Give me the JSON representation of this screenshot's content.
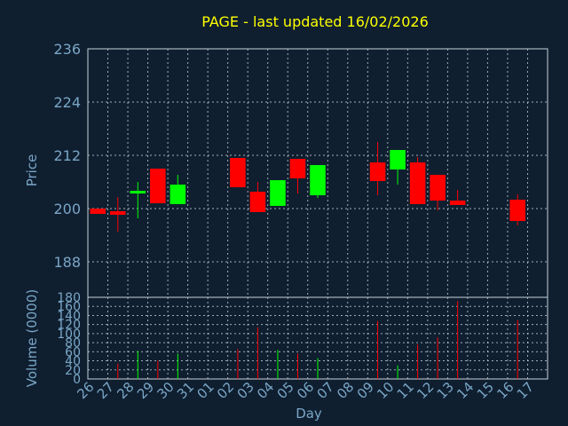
{
  "chart_data": [
    {
      "type": "candlestick",
      "title": "PAGE - last updated 16/02/2026",
      "xlabel": "Day",
      "ylabel": "Price",
      "ylim": [
        180,
        236
      ],
      "yticks": [
        188,
        200,
        212,
        224,
        236
      ],
      "grid": true,
      "categories": [
        "26",
        "27",
        "28",
        "29",
        "30",
        "31",
        "01",
        "02",
        "03",
        "04",
        "05",
        "06",
        "07",
        "08",
        "09",
        "10",
        "11",
        "12",
        "13",
        "14",
        "15",
        "16",
        "17"
      ],
      "candles": [
        {
          "day": "26",
          "open": 200.0,
          "close": 198.8,
          "high": 200.0,
          "low": 198.8
        },
        {
          "day": "27",
          "open": 199.4,
          "close": 198.6,
          "high": 202.6,
          "low": 194.8
        },
        {
          "day": "28",
          "open": 203.4,
          "close": 204.0,
          "high": 206.0,
          "low": 197.8
        },
        {
          "day": "29",
          "open": 209.0,
          "close": 201.2,
          "high": 209.0,
          "low": 201.2
        },
        {
          "day": "30",
          "open": 201.0,
          "close": 205.4,
          "high": 207.6,
          "low": 201.0
        },
        {
          "day": "02",
          "open": 211.4,
          "close": 204.8,
          "high": 211.4,
          "low": 204.8
        },
        {
          "day": "03",
          "open": 203.8,
          "close": 199.2,
          "high": 206.0,
          "low": 199.2
        },
        {
          "day": "04",
          "open": 200.6,
          "close": 206.4,
          "high": 206.4,
          "low": 200.6
        },
        {
          "day": "05",
          "open": 211.2,
          "close": 206.8,
          "high": 211.2,
          "low": 203.4
        },
        {
          "day": "06",
          "open": 203.0,
          "close": 209.8,
          "high": 209.8,
          "low": 202.4
        },
        {
          "day": "09",
          "open": 210.4,
          "close": 206.2,
          "high": 215.0,
          "low": 203.0
        },
        {
          "day": "10",
          "open": 208.8,
          "close": 213.2,
          "high": 213.2,
          "low": 205.4
        },
        {
          "day": "11",
          "open": 210.4,
          "close": 201.0,
          "high": 211.6,
          "low": 201.0
        },
        {
          "day": "12",
          "open": 207.6,
          "close": 201.8,
          "high": 207.6,
          "low": 199.6
        },
        {
          "day": "13",
          "open": 201.8,
          "close": 200.8,
          "high": 204.2,
          "low": 200.8
        },
        {
          "day": "16",
          "open": 202.0,
          "close": 197.2,
          "high": 203.2,
          "low": 196.2
        }
      ]
    },
    {
      "type": "bar",
      "xlabel": "Day",
      "ylabel": "Volume (0000)",
      "ylim": [
        0,
        180
      ],
      "yticks": [
        0,
        20,
        40,
        60,
        80,
        100,
        120,
        140,
        160,
        180
      ],
      "grid": true,
      "categories": [
        "26",
        "27",
        "28",
        "29",
        "30",
        "31",
        "01",
        "02",
        "03",
        "04",
        "05",
        "06",
        "07",
        "08",
        "09",
        "10",
        "11",
        "12",
        "13",
        "14",
        "15",
        "16",
        "17"
      ],
      "volumes": [
        {
          "day": "27",
          "value": 34,
          "direction": "down"
        },
        {
          "day": "28",
          "value": 62,
          "direction": "up"
        },
        {
          "day": "29",
          "value": 40,
          "direction": "down"
        },
        {
          "day": "30",
          "value": 56,
          "direction": "up"
        },
        {
          "day": "02",
          "value": 66,
          "direction": "down"
        },
        {
          "day": "03",
          "value": 114,
          "direction": "down"
        },
        {
          "day": "04",
          "value": 64,
          "direction": "up"
        },
        {
          "day": "05",
          "value": 56,
          "direction": "down"
        },
        {
          "day": "06",
          "value": 46,
          "direction": "up"
        },
        {
          "day": "09",
          "value": 128,
          "direction": "down"
        },
        {
          "day": "10",
          "value": 30,
          "direction": "up"
        },
        {
          "day": "11",
          "value": 76,
          "direction": "down"
        },
        {
          "day": "12",
          "value": 92,
          "direction": "down"
        },
        {
          "day": "13",
          "value": 172,
          "direction": "down"
        },
        {
          "day": "16",
          "value": 130,
          "direction": "down"
        }
      ]
    }
  ],
  "colors": {
    "background": "#0f1f30",
    "axis_text": "#7aa6c6",
    "title": "#ffff00",
    "up": "#00ff00",
    "down": "#ff0000",
    "grid": "#c8d0d8"
  }
}
